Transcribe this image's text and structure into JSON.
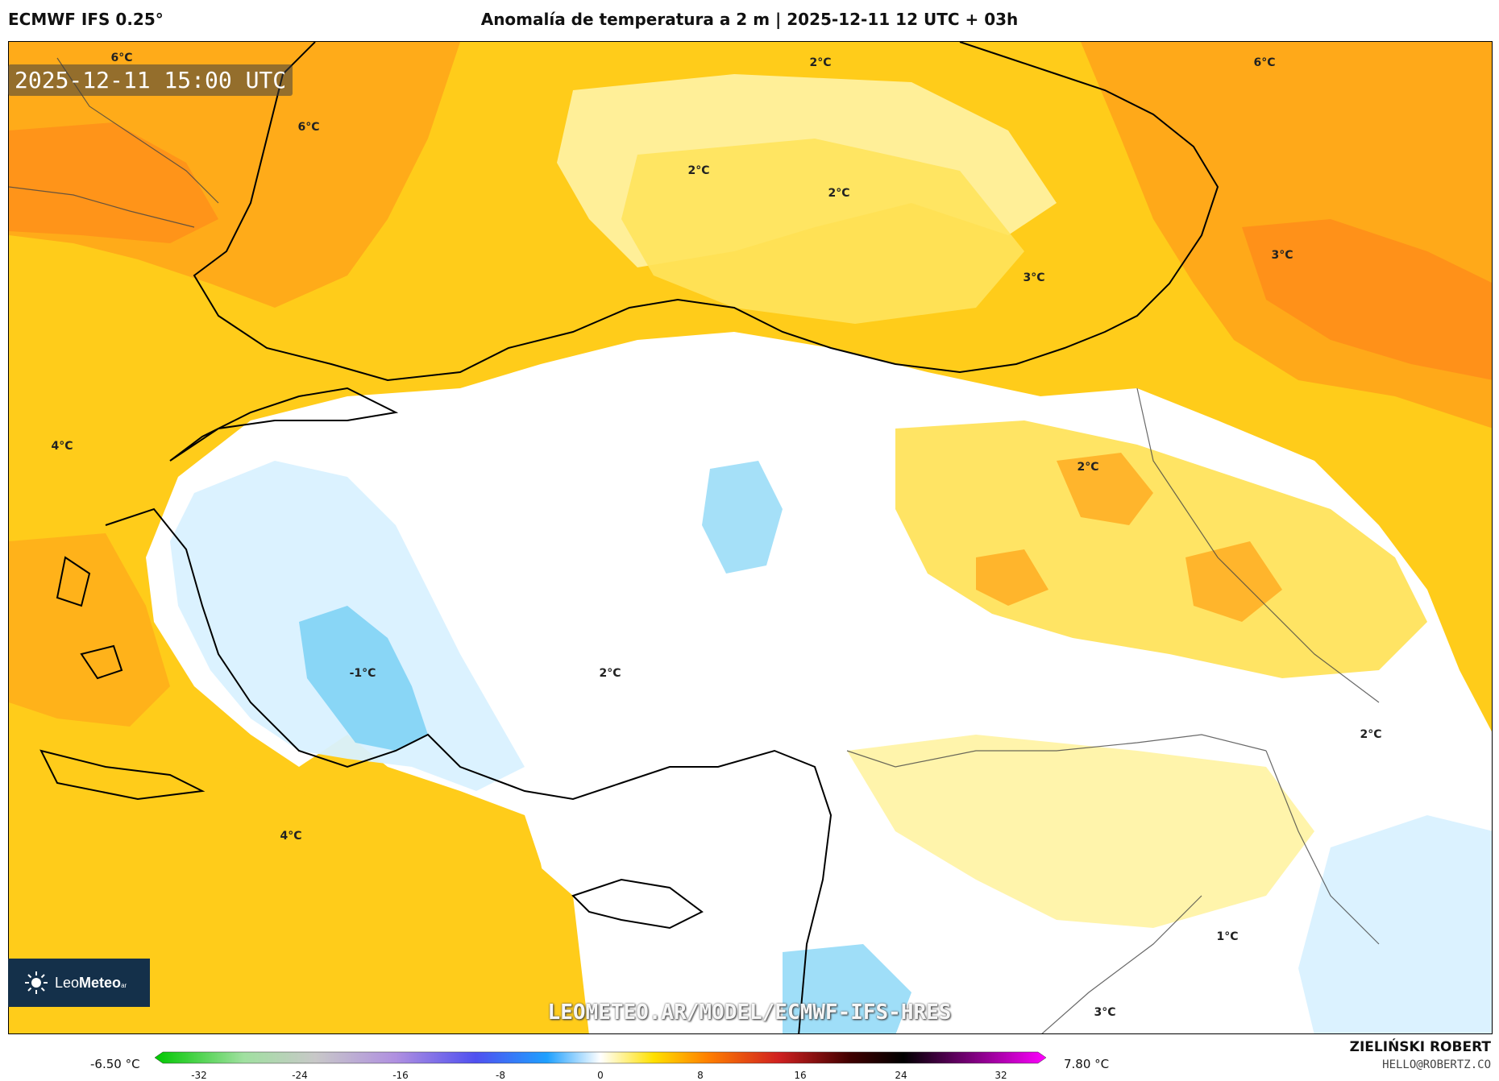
{
  "header": {
    "model": "ECMWF IFS 0.25°",
    "title": "Anomalía de temperatura a 2 m | 2025-12-11 12 UTC + 03h"
  },
  "map": {
    "valid_time": "2025-12-11 15:00 UTC",
    "watermark": "LEOMETEO.AR/MODEL/ECMWF-IFS-HRES",
    "labels": [
      {
        "text": "6°C",
        "lon": 22.5,
        "lat": 46.6
      },
      {
        "text": "6°C",
        "lon": 29.8,
        "lat": 45.6
      },
      {
        "text": "2°C",
        "lon": 34.0,
        "lat": 47.3
      },
      {
        "text": "2°C",
        "lon": 32.0,
        "lat": 45.0
      },
      {
        "text": "2°C",
        "lon": 33.6,
        "lat": 44.2
      },
      {
        "text": "3°C",
        "lon": 36.0,
        "lat": 42.7
      },
      {
        "text": "6°C",
        "lon": 46.0,
        "lat": 47.4
      },
      {
        "text": "3°C",
        "lon": 45.0,
        "lat": 43.9
      },
      {
        "text": "4°C",
        "lon": 19.3,
        "lat": 38.5
      },
      {
        "text": "2°C",
        "lon": 39.5,
        "lat": 39.3
      },
      {
        "text": "-1°C",
        "lon": 25.8,
        "lat": 34.4
      },
      {
        "text": "2°C",
        "lon": 28.8,
        "lat": 34.4
      },
      {
        "text": "2°C",
        "lon": 46.3,
        "lat": 32.3
      },
      {
        "text": "4°C",
        "lon": 25.2,
        "lat": 30.1
      },
      {
        "text": "1°C",
        "lon": 43.0,
        "lat": 28.2
      },
      {
        "text": "3°C",
        "lon": 41.5,
        "lat": 26.8
      }
    ],
    "colors": {
      "sea_warm": "#ffcc1a",
      "warm_orange": "#ffa51a",
      "strong_orange": "#ff8a1a",
      "mild_yellow": "#ffe35c",
      "pale_yellow": "#fff3a6",
      "neutral": "#ffffff",
      "cool": "#d9f1ff",
      "cold": "#7fd3f5",
      "border": "#000000"
    }
  },
  "legend": {
    "min_label": "-6.50 °C",
    "max_label": "7.80 °C",
    "ticks": [
      "-32",
      "-24",
      "-16",
      "-8",
      "0",
      "8",
      "16",
      "24",
      "32"
    ],
    "gradient": [
      "#00c800",
      "#a0e0a0",
      "#c8c8c8",
      "#b090e0",
      "#5050f0",
      "#1ea0ff",
      "#ffffff",
      "#ffe000",
      "#ff8000",
      "#d02020",
      "#400000",
      "#000000",
      "#800080",
      "#ff00ff"
    ]
  },
  "logo": {
    "brand_light": "Leo",
    "brand_bold": "Meteo",
    "suffix": "ar"
  },
  "credit": {
    "name": "ZIELIŃSKI ROBERT",
    "email": "HELLO@ROBERTZ.CO"
  }
}
